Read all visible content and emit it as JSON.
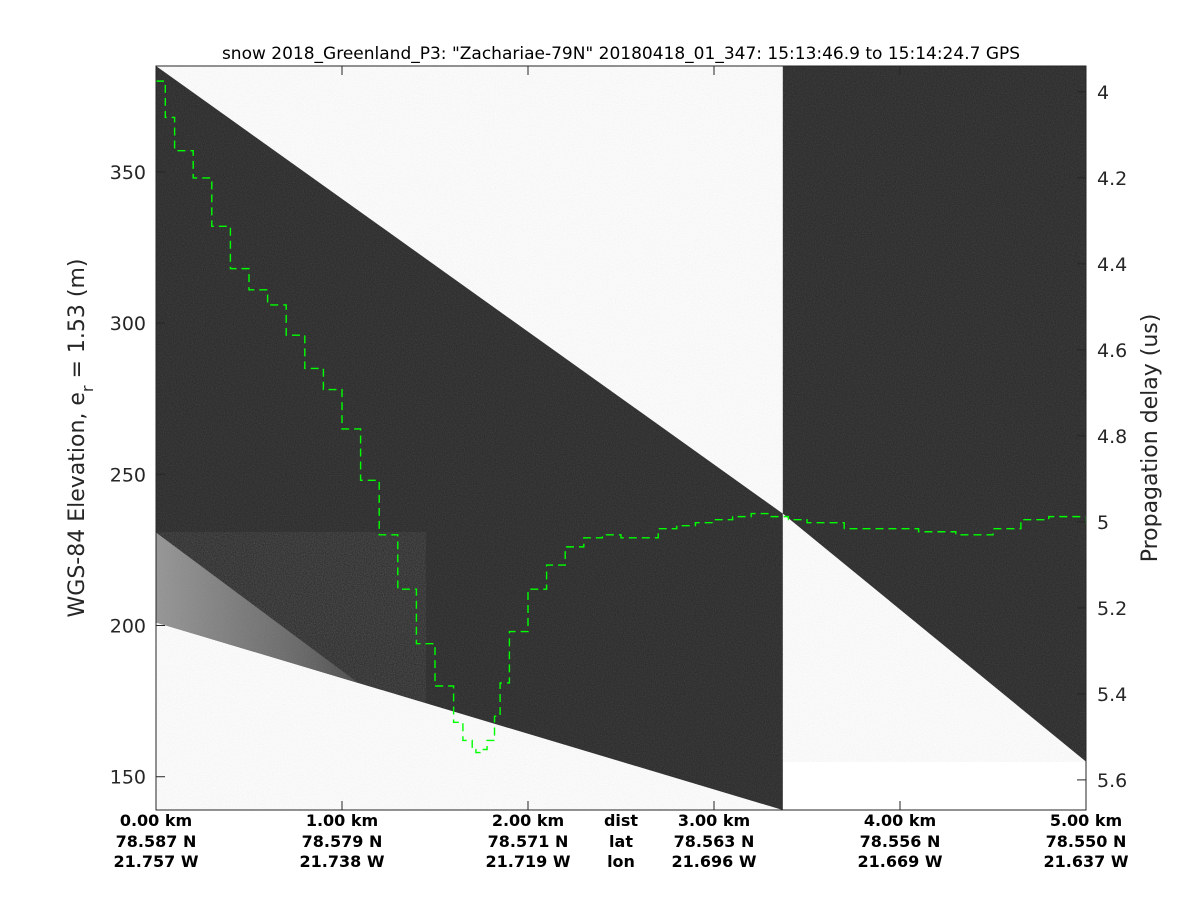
{
  "chart_data": {
    "type": "radar-echogram",
    "title": "snow 2018_Greenland_P3: \"Zachariae-79N\"  20180418_01_347: 15:13:46.9 to 15:14:24.7 GPS",
    "ylabel_main": "WGS-84 Elevation, e",
    "ylabel_sub": "r",
    "ylabel_tail": " = 1.53 (m)",
    "y2label": "Propagation delay (us)",
    "ylim": [
      139,
      385
    ],
    "y2lim": [
      3.94,
      5.67
    ],
    "xlim": [
      0,
      5
    ],
    "yticks": [
      150,
      200,
      250,
      300,
      350
    ],
    "y2ticks": [
      4,
      4.2,
      4.4,
      4.6,
      4.8,
      5,
      5.2,
      5.4,
      5.6
    ],
    "xticks": [
      0,
      1,
      2,
      3,
      4,
      5
    ],
    "bottom_rows": {
      "dist": [
        "0.00 km",
        "1.00 km",
        "2.00 km",
        "3.00 km",
        "4.00 km",
        "5.00 km"
      ],
      "lat": [
        "78.587 N",
        "78.579 N",
        "78.571 N",
        "78.563 N",
        "78.556 N",
        "78.550 N"
      ],
      "lon": [
        "21.757 W",
        "21.738 W",
        "21.719 W",
        "21.696 W",
        "21.669 W",
        "21.637 W"
      ],
      "row_labels": [
        "dist",
        "lat",
        "lon"
      ]
    },
    "segments": [
      {
        "x_start": 0,
        "x_end": 3.37,
        "top_at_start": 385,
        "top_at_end": 237,
        "bottom_at_start": 201,
        "bottom_at_end": 139
      },
      {
        "x_start": 3.37,
        "x_end": 5.0,
        "top_at_start": 385,
        "top_at_end": 385,
        "bottom_at_start": 237,
        "bottom_at_end": 155
      }
    ],
    "surface_trace": {
      "color": "#00ff00",
      "x": [
        0.0,
        0.05,
        0.1,
        0.2,
        0.3,
        0.4,
        0.5,
        0.6,
        0.7,
        0.8,
        0.9,
        1.0,
        1.1,
        1.2,
        1.3,
        1.4,
        1.5,
        1.6,
        1.65,
        1.7,
        1.72,
        1.75,
        1.78,
        1.82,
        1.85,
        1.9,
        2.0,
        2.1,
        2.2,
        2.3,
        2.4,
        2.5,
        2.6,
        2.7,
        2.8,
        2.9,
        3.0,
        3.1,
        3.2,
        3.3,
        3.4,
        3.5,
        3.7,
        3.9,
        4.1,
        4.3,
        4.5,
        4.65,
        4.8,
        5.0
      ],
      "y": [
        380,
        368,
        357,
        348,
        332,
        318,
        311,
        306,
        296,
        285,
        278,
        265,
        248,
        230,
        212,
        194,
        180,
        168,
        162,
        159,
        158,
        159,
        162,
        170,
        181,
        198,
        212,
        220,
        226,
        229,
        230,
        229,
        229,
        232,
        233,
        234,
        235,
        236,
        237,
        236,
        235,
        234,
        232,
        232,
        231,
        230,
        232,
        235,
        236,
        233
      ]
    }
  }
}
